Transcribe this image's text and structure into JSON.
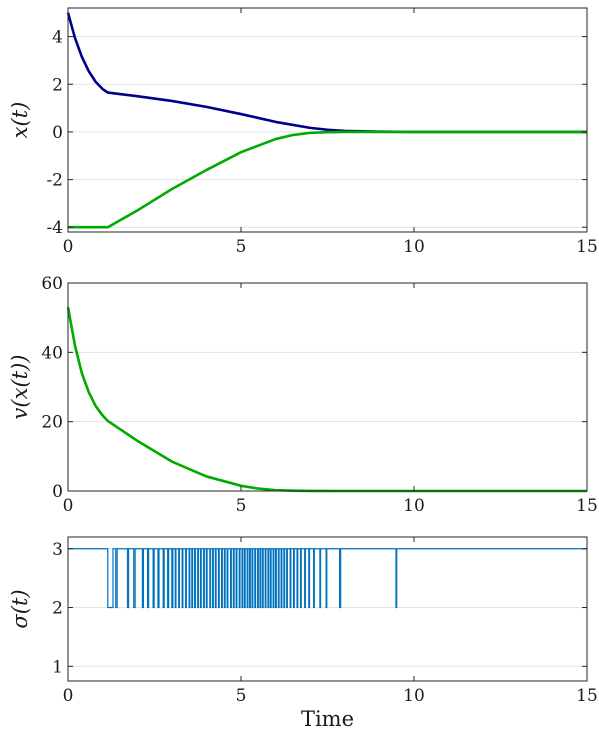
{
  "chart_data": [
    {
      "type": "line",
      "ylabel": "x(t)",
      "xlabel": "",
      "xlim": [
        0,
        15
      ],
      "ylim": [
        -4.2,
        5.2
      ],
      "xticks": [
        0,
        5,
        10,
        15
      ],
      "xtick_labels": [
        "0",
        "5",
        "10",
        "15"
      ],
      "yticks": [
        -4,
        -2,
        0,
        2,
        4
      ],
      "ytick_labels": [
        "-4",
        "-2",
        "0",
        "2",
        "4"
      ],
      "grid": "horizontal",
      "series": [
        {
          "color": "#00008b",
          "x": [
            0,
            0.2,
            0.4,
            0.6,
            0.8,
            1.0,
            1.15,
            2,
            3,
            4,
            5,
            6,
            7,
            7.5,
            8,
            9,
            10,
            12,
            15
          ],
          "y": [
            5.0,
            3.95,
            3.15,
            2.55,
            2.1,
            1.8,
            1.65,
            1.5,
            1.3,
            1.05,
            0.75,
            0.42,
            0.17,
            0.09,
            0.04,
            0.01,
            0.0,
            0.0,
            0.0
          ]
        },
        {
          "color": "#00aa00",
          "x": [
            0,
            1.15,
            2,
            3,
            4,
            5,
            6,
            6.5,
            7,
            7.5,
            8,
            9,
            10,
            12,
            15
          ],
          "y": [
            -4.0,
            -4.0,
            -3.3,
            -2.4,
            -1.6,
            -0.85,
            -0.3,
            -0.13,
            -0.04,
            -0.01,
            0.0,
            0.0,
            0.0,
            0.0,
            0.0
          ]
        }
      ]
    },
    {
      "type": "line",
      "ylabel": "v(x(t))",
      "xlabel": "",
      "xlim": [
        0,
        15
      ],
      "ylim": [
        0,
        60
      ],
      "xticks": [
        0,
        5,
        10,
        15
      ],
      "xtick_labels": [
        "0",
        "5",
        "10",
        "15"
      ],
      "yticks": [
        0,
        20,
        40,
        60
      ],
      "ytick_labels": [
        "0",
        "20",
        "40",
        "60"
      ],
      "grid": "horizontal",
      "series": [
        {
          "color": "#00aa00",
          "x": [
            0,
            0.2,
            0.4,
            0.6,
            0.8,
            1.0,
            1.15,
            2,
            3,
            4,
            5,
            5.5,
            6,
            6.5,
            7,
            8,
            10,
            15
          ],
          "y": [
            53,
            42,
            34,
            28.5,
            24.5,
            21.8,
            20.2,
            14.5,
            8.5,
            4.2,
            1.5,
            0.7,
            0.25,
            0.08,
            0.02,
            0.0,
            0.0,
            0.0
          ]
        }
      ]
    },
    {
      "type": "line",
      "ylabel": "σ(t)",
      "xlabel": "Time",
      "xlim": [
        0,
        15
      ],
      "ylim": [
        0.75,
        3.2
      ],
      "xticks": [
        0,
        5,
        10,
        15
      ],
      "xtick_labels": [
        "0",
        "5",
        "10",
        "15"
      ],
      "yticks": [
        1,
        2,
        3
      ],
      "ytick_labels": [
        "1",
        "2",
        "3"
      ],
      "grid": "horizontal",
      "series": [
        {
          "color": "#0072bd",
          "high": 3,
          "low": 2,
          "switch_segments": [
            [
              1.15,
              1.3
            ],
            [
              1.38,
              1.42
            ],
            [
              1.72,
              1.75
            ],
            [
              1.9,
              1.94
            ],
            [
              2.15,
              2.18
            ],
            [
              2.3,
              2.33
            ],
            [
              2.46,
              2.49
            ],
            [
              2.6,
              2.63
            ],
            [
              2.75,
              2.78
            ],
            [
              2.88,
              2.91
            ],
            [
              3.0,
              3.03
            ],
            [
              3.1,
              3.12
            ],
            [
              3.2,
              3.22
            ],
            [
              3.3,
              3.32
            ],
            [
              3.4,
              3.42
            ],
            [
              3.5,
              3.52
            ],
            [
              3.58,
              3.6
            ],
            [
              3.66,
              3.68
            ],
            [
              3.75,
              3.77
            ],
            [
              3.83,
              3.85
            ],
            [
              3.92,
              3.94
            ],
            [
              4.0,
              4.02
            ],
            [
              4.1,
              4.12
            ],
            [
              4.18,
              4.2
            ],
            [
              4.26,
              4.28
            ],
            [
              4.35,
              4.37
            ],
            [
              4.44,
              4.46
            ],
            [
              4.52,
              4.54
            ],
            [
              4.6,
              4.62
            ],
            [
              4.7,
              4.72
            ],
            [
              4.78,
              4.8
            ],
            [
              4.86,
              4.88
            ],
            [
              4.95,
              4.97
            ],
            [
              5.03,
              5.05
            ],
            [
              5.1,
              5.12
            ],
            [
              5.18,
              5.2
            ],
            [
              5.25,
              5.27
            ],
            [
              5.32,
              5.34
            ],
            [
              5.4,
              5.42
            ],
            [
              5.48,
              5.5
            ],
            [
              5.55,
              5.57
            ],
            [
              5.62,
              5.64
            ],
            [
              5.7,
              5.72
            ],
            [
              5.78,
              5.8
            ],
            [
              5.85,
              5.87
            ],
            [
              5.93,
              5.95
            ],
            [
              6.0,
              6.02
            ],
            [
              6.08,
              6.1
            ],
            [
              6.16,
              6.18
            ],
            [
              6.24,
              6.26
            ],
            [
              6.32,
              6.34
            ],
            [
              6.42,
              6.44
            ],
            [
              6.52,
              6.54
            ],
            [
              6.62,
              6.64
            ],
            [
              6.72,
              6.74
            ],
            [
              6.84,
              6.86
            ],
            [
              6.96,
              6.98
            ],
            [
              7.1,
              7.12
            ],
            [
              7.28,
              7.3
            ],
            [
              7.46,
              7.48
            ],
            [
              7.85,
              7.88
            ],
            [
              9.48,
              9.5
            ]
          ]
        }
      ]
    }
  ]
}
